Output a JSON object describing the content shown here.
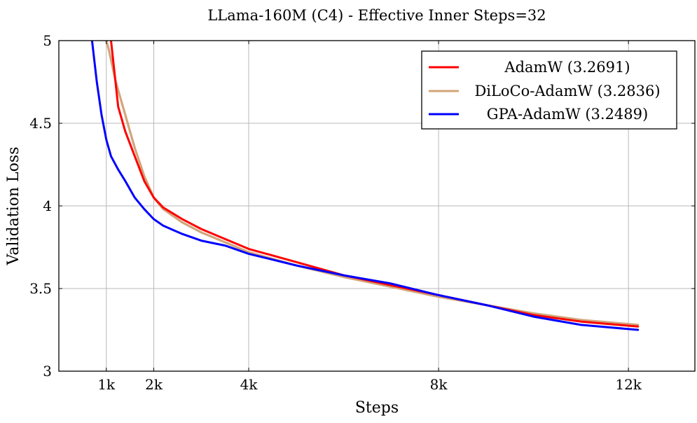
{
  "chart_data": {
    "type": "line",
    "title": "LLama-160M (C4) - Effective Inner Steps=32",
    "xlabel": "Steps",
    "ylabel": "Validation Loss",
    "xlim": [
      0,
      13400
    ],
    "ylim": [
      3,
      5
    ],
    "x_ticks": [
      1000,
      2000,
      4000,
      8000,
      12000
    ],
    "x_tick_labels": [
      "1k",
      "2k",
      "4k",
      "8k",
      "12k"
    ],
    "y_ticks": [
      3,
      3.5,
      4,
      4.5,
      5
    ],
    "y_tick_labels": [
      "3",
      "3.5",
      "4",
      "4.5",
      "5"
    ],
    "grid": true,
    "legend_position": "top-right",
    "colors": {
      "adamw": "#ff0000",
      "diloco": "#d2a57a",
      "gpa": "#0000ff"
    },
    "series": [
      {
        "name": "AdamW (3.2691)",
        "color": "#ff0000",
        "x": [
          1100,
          1250,
          1400,
          1600,
          1800,
          2000,
          2200,
          2600,
          3000,
          3500,
          4000,
          5000,
          6000,
          7000,
          8000,
          9000,
          10000,
          11000,
          12200
        ],
        "y": [
          5.0,
          4.6,
          4.45,
          4.3,
          4.15,
          4.05,
          3.99,
          3.92,
          3.86,
          3.8,
          3.74,
          3.66,
          3.58,
          3.52,
          3.46,
          3.4,
          3.34,
          3.3,
          3.27
        ]
      },
      {
        "name": "DiLoCo-AdamW (3.2836)",
        "color": "#d2a57a",
        "x": [
          1000,
          1050,
          1200,
          1400,
          1600,
          1800,
          2000,
          2200,
          2600,
          3000,
          3500,
          4000,
          5000,
          6000,
          7000,
          8000,
          9000,
          10000,
          11000,
          12200
        ],
        "y": [
          5.0,
          4.95,
          4.75,
          4.55,
          4.35,
          4.18,
          4.05,
          3.98,
          3.9,
          3.84,
          3.78,
          3.72,
          3.64,
          3.57,
          3.51,
          3.45,
          3.4,
          3.35,
          3.31,
          3.28
        ]
      },
      {
        "name": "GPA-AdamW (3.2489)",
        "color": "#0000ff",
        "x": [
          700,
          800,
          900,
          1000,
          1100,
          1250,
          1400,
          1600,
          1800,
          2000,
          2200,
          2600,
          3000,
          3500,
          4000,
          5000,
          6000,
          7000,
          8000,
          9000,
          10000,
          11000,
          12200
        ],
        "y": [
          5.0,
          4.75,
          4.55,
          4.4,
          4.3,
          4.22,
          4.15,
          4.05,
          3.98,
          3.92,
          3.88,
          3.83,
          3.79,
          3.76,
          3.71,
          3.64,
          3.58,
          3.53,
          3.46,
          3.4,
          3.33,
          3.28,
          3.25
        ]
      }
    ]
  }
}
